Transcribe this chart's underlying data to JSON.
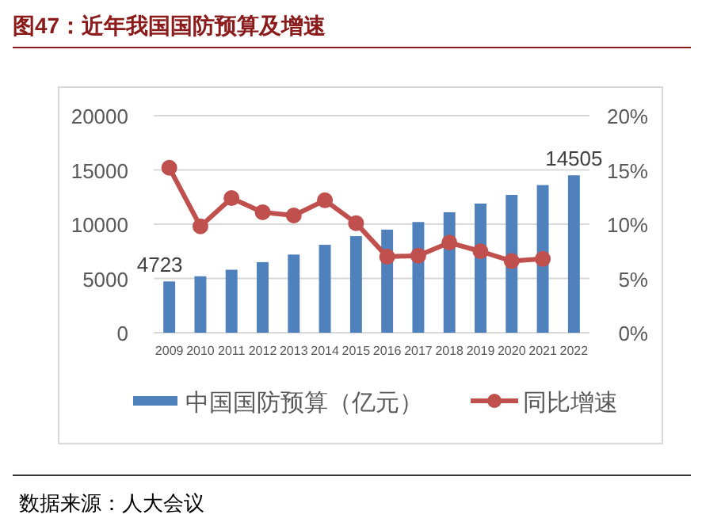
{
  "chart_data": {
    "type": "bar",
    "title": "图47：近年我国国防预算及增速",
    "categories": [
      "2009",
      "2010",
      "2011",
      "2012",
      "2013",
      "2014",
      "2015",
      "2016",
      "2017",
      "2018",
      "2019",
      "2020",
      "2021",
      "2022"
    ],
    "series": [
      {
        "name": "中国国防预算（亿元）",
        "color": "#4f81bd",
        "values": [
          4723,
          5200,
          5800,
          6500,
          7200,
          8100,
          8900,
          9500,
          10200,
          11100,
          11900,
          12700,
          13600,
          14505
        ],
        "value_labels": [
          "4723",
          null,
          null,
          null,
          null,
          null,
          null,
          null,
          null,
          null,
          null,
          null,
          null,
          "14505"
        ]
      },
      {
        "name": "同比增速",
        "type": "line",
        "axis": "y2",
        "color": "#c0504d",
        "marker": "circle",
        "values": [
          15.2,
          9.8,
          12.4,
          11.1,
          10.8,
          12.2,
          10.1,
          7.0,
          7.1,
          8.3,
          7.5,
          6.6,
          6.8,
          null
        ]
      }
    ],
    "ylim": [
      0,
      20000
    ],
    "yticks": [
      0,
      5000,
      10000,
      15000,
      20000
    ],
    "y2lim": [
      0,
      20
    ],
    "y2ticks": [
      {
        "value": 0,
        "label": "0%"
      },
      {
        "value": 5,
        "label": "5%"
      },
      {
        "value": 10,
        "label": "10%"
      },
      {
        "value": 15,
        "label": "15%"
      },
      {
        "value": 20,
        "label": "20%"
      }
    ],
    "grid": "y",
    "legend": "bottom",
    "annotations": [
      "数据来源：人大会议"
    ]
  }
}
